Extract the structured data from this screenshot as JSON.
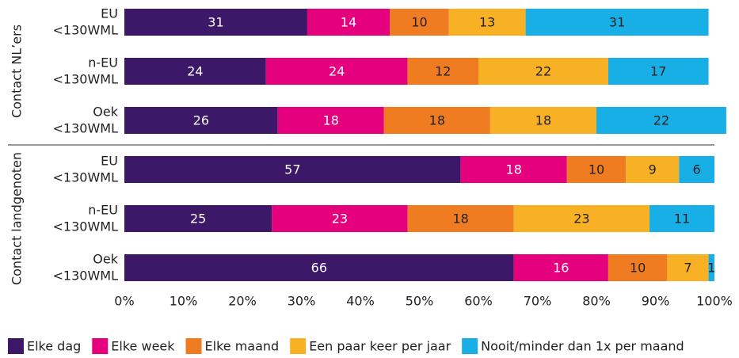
{
  "chart_data": {
    "type": "stacked-bar-horizontal",
    "categories": [
      [
        "EU",
        "<130WML"
      ],
      [
        "n-EU",
        "<130WML"
      ],
      [
        "Oek",
        "<130WML"
      ],
      [
        "EU",
        "<130WML"
      ],
      [
        "n-EU",
        "<130WML"
      ],
      [
        "Oek",
        "<130WML"
      ]
    ],
    "groups": [
      {
        "label": "Contact NL’ers",
        "rows": [
          0,
          1,
          2
        ]
      },
      {
        "label": "Contact landgenoten",
        "rows": [
          3,
          4,
          5
        ]
      }
    ],
    "series": [
      {
        "name": "Elke dag",
        "color": "#3d1768",
        "label_color": "#ffffff",
        "values": [
          31,
          24,
          26,
          57,
          25,
          66
        ]
      },
      {
        "name": "Elke week",
        "color": "#e5007d",
        "label_color": "#ffffff",
        "values": [
          14,
          24,
          18,
          18,
          23,
          16
        ]
      },
      {
        "name": "Elke maand",
        "color": "#f07c22",
        "label_color": "#222222",
        "values": [
          10,
          12,
          18,
          10,
          18,
          10
        ]
      },
      {
        "name": "Een paar keer per jaar",
        "color": "#f8b025",
        "label_color": "#222222",
        "values": [
          13,
          22,
          18,
          9,
          23,
          7
        ]
      },
      {
        "name": "Nooit/minder dan 1x per maand",
        "color": "#18aee6",
        "label_color": "#222222",
        "values": [
          31,
          17,
          22,
          6,
          11,
          1
        ]
      }
    ],
    "xlim": [
      0,
      100
    ],
    "xticks": [
      {
        "value": 0,
        "label": "0%"
      },
      {
        "value": 10,
        "label": "10%"
      },
      {
        "value": 20,
        "label": "20%"
      },
      {
        "value": 30,
        "label": "30%"
      },
      {
        "value": 40,
        "label": "40%"
      },
      {
        "value": 50,
        "label": "50%"
      },
      {
        "value": 60,
        "label": "60%"
      },
      {
        "value": 70,
        "label": "70%"
      },
      {
        "value": 80,
        "label": "80%"
      },
      {
        "value": 90,
        "label": "90%"
      },
      {
        "value": 100,
        "label": "100%"
      }
    ],
    "legend": "bottom"
  }
}
